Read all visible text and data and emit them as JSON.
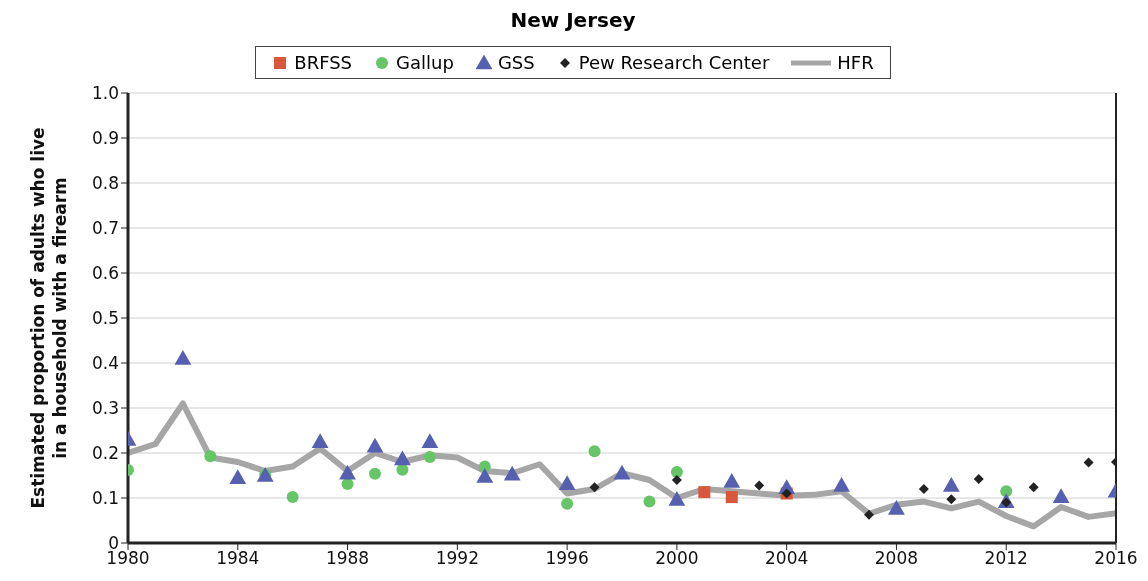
{
  "chart_data": {
    "type": "scatter",
    "title": "New Jersey",
    "ylabel": "Estimated proportion of adults who live in a household with a firearm",
    "xlim": [
      1980,
      2016
    ],
    "xticks": [
      1980,
      1984,
      1988,
      1992,
      1996,
      2000,
      2004,
      2008,
      2012,
      2016
    ],
    "ylim": [
      0,
      1
    ],
    "yticks": [
      0,
      0.1,
      0.2,
      0.3,
      0.4,
      0.5,
      0.6,
      0.7,
      0.8,
      0.9,
      {
        "value": 1,
        "label": "1.0"
      }
    ],
    "grid": "y",
    "legend": "top",
    "series": [
      {
        "name": "BRFSS",
        "marker": "square",
        "color": "#d9573d",
        "x": [
          2001,
          2002,
          2004
        ],
        "values": [
          0.113,
          0.102,
          0.11
        ]
      },
      {
        "name": "Gallup",
        "marker": "circle",
        "color": "#66c566",
        "x": [
          1980,
          1983,
          1985,
          1986,
          1988,
          1989,
          1990,
          1991,
          1993,
          1996,
          1997,
          1999,
          2000,
          2012
        ],
        "values": [
          0.162,
          0.193,
          0.152,
          0.102,
          0.131,
          0.154,
          0.163,
          0.191,
          0.17,
          0.087,
          0.204,
          0.092,
          0.158,
          0.115
        ]
      },
      {
        "name": "GSS",
        "marker": "triangle",
        "color": "#5660b0",
        "x": [
          1980,
          1982,
          1984,
          1985,
          1987,
          1988,
          1989,
          1990,
          1991,
          1993,
          1994,
          1996,
          1998,
          2000,
          2002,
          2004,
          2006,
          2008,
          2010,
          2012,
          2014,
          2016
        ],
        "values": [
          0.23,
          0.41,
          0.145,
          0.15,
          0.225,
          0.155,
          0.215,
          0.187,
          0.225,
          0.148,
          0.153,
          0.132,
          0.155,
          0.097,
          0.137,
          0.123,
          0.128,
          0.077,
          0.128,
          0.092,
          0.103,
          0.115
        ]
      },
      {
        "name": "Pew Research Center",
        "marker": "diamond",
        "color": "#222222",
        "x": [
          1997,
          2000,
          2003,
          2004,
          2007,
          2009,
          2010,
          2011,
          2012,
          2013,
          2015,
          2016
        ],
        "values": [
          0.124,
          0.14,
          0.128,
          0.11,
          0.063,
          0.12,
          0.097,
          0.142,
          0.09,
          0.124,
          0.179,
          0.18
        ]
      },
      {
        "name": "HFR",
        "type": "line",
        "marker": "none",
        "color": "#a6a6a6",
        "x": [
          1980,
          1981,
          1982,
          1983,
          1984,
          1985,
          1986,
          1987,
          1988,
          1989,
          1990,
          1991,
          1992,
          1993,
          1994,
          1995,
          1996,
          1997,
          1998,
          1999,
          2000,
          2001,
          2002,
          2003,
          2004,
          2005,
          2006,
          2007,
          2008,
          2009,
          2010,
          2011,
          2012,
          2013,
          2014,
          2015,
          2016
        ],
        "values": [
          0.2,
          0.22,
          0.31,
          0.19,
          0.18,
          0.16,
          0.17,
          0.21,
          0.16,
          0.2,
          0.18,
          0.195,
          0.19,
          0.16,
          0.155,
          0.175,
          0.11,
          0.12,
          0.155,
          0.14,
          0.1,
          0.12,
          0.115,
          0.11,
          0.105,
          0.107,
          0.115,
          0.065,
          0.085,
          0.092,
          0.077,
          0.092,
          0.06,
          0.037,
          0.08,
          0.058,
          0.066
        ]
      }
    ]
  }
}
